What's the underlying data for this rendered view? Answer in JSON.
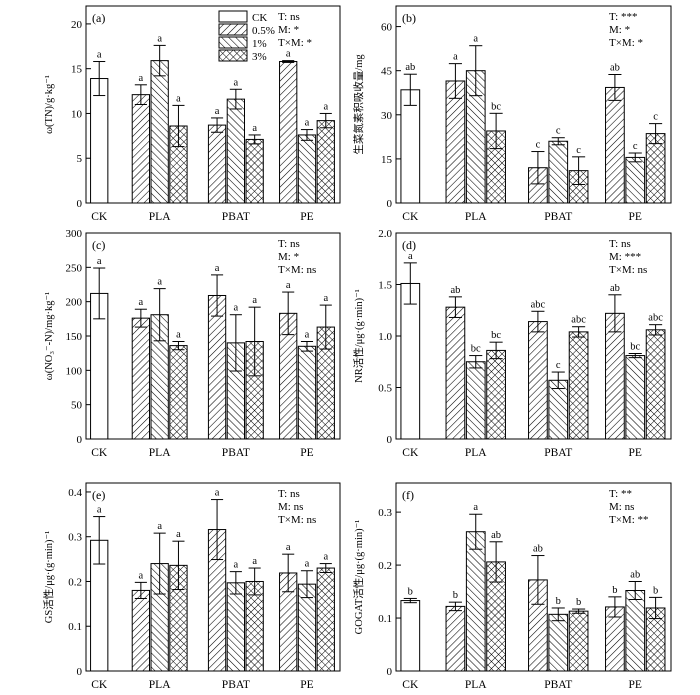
{
  "legend": [
    {
      "label": "CK",
      "pattern": "white"
    },
    {
      "label": "0.5%",
      "pattern": "diag-right"
    },
    {
      "label": "1%",
      "pattern": "diag-left"
    },
    {
      "label": "3%",
      "pattern": "cross"
    }
  ],
  "chart_data": [
    {
      "id": "a",
      "label": "(a)",
      "type": "bar",
      "ylabel": "ω(TN)/g·kg⁻¹",
      "ylim": [
        0,
        22
      ],
      "yticks": [
        0,
        5,
        10,
        15,
        20
      ],
      "ytick_labels": [
        "0",
        "5",
        "10",
        "15",
        "20"
      ],
      "categories": [
        "CK",
        "PLA",
        "PBAT",
        "PE"
      ],
      "stats": [
        "T: ns",
        "M: *",
        "T×M: *"
      ],
      "bars": [
        {
          "group": "CK",
          "level": "CK",
          "value": 13.9,
          "err": 1.9,
          "sig": "a"
        },
        {
          "group": "PLA",
          "level": "0.5%",
          "value": 12.1,
          "err": 1.1,
          "sig": "a"
        },
        {
          "group": "PLA",
          "level": "1%",
          "value": 15.9,
          "err": 1.7,
          "sig": "a"
        },
        {
          "group": "PLA",
          "level": "3%",
          "value": 8.6,
          "err": 2.3,
          "sig": "a"
        },
        {
          "group": "PBAT",
          "level": "0.5%",
          "value": 8.7,
          "err": 0.8,
          "sig": "a"
        },
        {
          "group": "PBAT",
          "level": "1%",
          "value": 11.6,
          "err": 1.1,
          "sig": "a"
        },
        {
          "group": "PBAT",
          "level": "3%",
          "value": 7.1,
          "err": 0.5,
          "sig": "a"
        },
        {
          "group": "PE",
          "level": "0.5%",
          "value": 15.8,
          "err": 0.1,
          "sig": "a"
        },
        {
          "group": "PE",
          "level": "1%",
          "value": 7.6,
          "err": 0.6,
          "sig": "a"
        },
        {
          "group": "PE",
          "level": "3%",
          "value": 9.2,
          "err": 0.8,
          "sig": "a"
        }
      ]
    },
    {
      "id": "b",
      "label": "(b)",
      "type": "bar",
      "ylabel": "生菜氮素积吸收量/mg",
      "ylim": [
        0,
        67
      ],
      "yticks": [
        0,
        15,
        30,
        45,
        60
      ],
      "ytick_labels": [
        "0",
        "15",
        "30",
        "45",
        "60"
      ],
      "categories": [
        "CK",
        "PLA",
        "PBAT",
        "PE"
      ],
      "stats": [
        "T: ***",
        "M: *",
        "T×M: *"
      ],
      "bars": [
        {
          "group": "CK",
          "level": "CK",
          "value": 38.5,
          "err": 5.3,
          "sig": "ab"
        },
        {
          "group": "PLA",
          "level": "0.5%",
          "value": 41.5,
          "err": 5.9,
          "sig": "a"
        },
        {
          "group": "PLA",
          "level": "1%",
          "value": 45,
          "err": 8.5,
          "sig": "a"
        },
        {
          "group": "PLA",
          "level": "3%",
          "value": 24.5,
          "err": 6,
          "sig": "bc"
        },
        {
          "group": "PBAT",
          "level": "0.5%",
          "value": 12,
          "err": 5.5,
          "sig": "c"
        },
        {
          "group": "PBAT",
          "level": "1%",
          "value": 21,
          "err": 1.2,
          "sig": "c"
        },
        {
          "group": "PBAT",
          "level": "3%",
          "value": 11,
          "err": 4.7,
          "sig": "c"
        },
        {
          "group": "PE",
          "level": "0.5%",
          "value": 39.3,
          "err": 4.4,
          "sig": "ab"
        },
        {
          "group": "PE",
          "level": "1%",
          "value": 15.5,
          "err": 1.5,
          "sig": "c"
        },
        {
          "group": "PE",
          "level": "3%",
          "value": 23.6,
          "err": 3.4,
          "sig": "c"
        }
      ]
    },
    {
      "id": "c",
      "label": "(c)",
      "type": "bar",
      "ylabel": "ω(NO₃⁻-N)/mg·kg⁻¹",
      "ylim": [
        0,
        300
      ],
      "yticks": [
        0,
        50,
        100,
        150,
        200,
        250,
        300
      ],
      "ytick_labels": [
        "0",
        "50",
        "100",
        "150",
        "200",
        "250",
        "300"
      ],
      "categories": [
        "CK",
        "PLA",
        "PBAT",
        "PE"
      ],
      "stats": [
        "T: ns",
        "M: *",
        "T×M: ns"
      ],
      "bars": [
        {
          "group": "CK",
          "level": "CK",
          "value": 212,
          "err": 37,
          "sig": "a"
        },
        {
          "group": "PLA",
          "level": "0.5%",
          "value": 176,
          "err": 13,
          "sig": "a"
        },
        {
          "group": "PLA",
          "level": "1%",
          "value": 181,
          "err": 38,
          "sig": "a"
        },
        {
          "group": "PLA",
          "level": "3%",
          "value": 136,
          "err": 6,
          "sig": "a"
        },
        {
          "group": "PBAT",
          "level": "0.5%",
          "value": 209,
          "err": 30,
          "sig": "a"
        },
        {
          "group": "PBAT",
          "level": "1%",
          "value": 140,
          "err": 41,
          "sig": "a"
        },
        {
          "group": "PBAT",
          "level": "3%",
          "value": 142,
          "err": 50,
          "sig": "a"
        },
        {
          "group": "PE",
          "level": "0.5%",
          "value": 183,
          "err": 31,
          "sig": "a"
        },
        {
          "group": "PE",
          "level": "1%",
          "value": 135,
          "err": 7,
          "sig": "a"
        },
        {
          "group": "PE",
          "level": "3%",
          "value": 163,
          "err": 32,
          "sig": "a"
        }
      ]
    },
    {
      "id": "d",
      "label": "(d)",
      "type": "bar",
      "ylabel": "NR活性/μg·(g·min)⁻¹",
      "ylim": [
        0,
        2.0
      ],
      "yticks": [
        0,
        0.5,
        1.0,
        1.5,
        2.0
      ],
      "ytick_labels": [
        "0",
        "0.5",
        "1.0",
        "1.5",
        "2.0"
      ],
      "categories": [
        "CK",
        "PLA",
        "PBAT",
        "PE"
      ],
      "stats": [
        "T: ns",
        "M: ***",
        "T×M: ns"
      ],
      "bars": [
        {
          "group": "CK",
          "level": "CK",
          "value": 1.51,
          "err": 0.2,
          "sig": "a"
        },
        {
          "group": "PLA",
          "level": "0.5%",
          "value": 1.28,
          "err": 0.1,
          "sig": "ab"
        },
        {
          "group": "PLA",
          "level": "1%",
          "value": 0.75,
          "err": 0.06,
          "sig": "bc"
        },
        {
          "group": "PLA",
          "level": "3%",
          "value": 0.86,
          "err": 0.08,
          "sig": "bc"
        },
        {
          "group": "PBAT",
          "level": "0.5%",
          "value": 1.14,
          "err": 0.1,
          "sig": "abc"
        },
        {
          "group": "PBAT",
          "level": "1%",
          "value": 0.57,
          "err": 0.08,
          "sig": "c"
        },
        {
          "group": "PBAT",
          "level": "3%",
          "value": 1.04,
          "err": 0.05,
          "sig": "abc"
        },
        {
          "group": "PE",
          "level": "0.5%",
          "value": 1.22,
          "err": 0.18,
          "sig": "ab"
        },
        {
          "group": "PE",
          "level": "1%",
          "value": 0.81,
          "err": 0.02,
          "sig": "bc"
        },
        {
          "group": "PE",
          "level": "3%",
          "value": 1.06,
          "err": 0.05,
          "sig": "abc"
        }
      ]
    },
    {
      "id": "e",
      "label": "(e)",
      "type": "bar",
      "ylabel": "GS活性/μg·(g·min)⁻¹",
      "ylim": [
        0,
        0.42
      ],
      "yticks": [
        0,
        0.1,
        0.2,
        0.3,
        0.4
      ],
      "ytick_labels": [
        "0",
        "0.1",
        "0.2",
        "0.3",
        "0.4"
      ],
      "categories": [
        "CK",
        "PLA",
        "PBAT",
        "PE"
      ],
      "stats": [
        "T: ns",
        "M: ns",
        "T×M: ns"
      ],
      "bars": [
        {
          "group": "CK",
          "level": "CK",
          "value": 0.292,
          "err": 0.053,
          "sig": "a"
        },
        {
          "group": "PLA",
          "level": "0.5%",
          "value": 0.18,
          "err": 0.018,
          "sig": "a"
        },
        {
          "group": "PLA",
          "level": "1%",
          "value": 0.24,
          "err": 0.068,
          "sig": "a"
        },
        {
          "group": "PLA",
          "level": "3%",
          "value": 0.236,
          "err": 0.054,
          "sig": "a"
        },
        {
          "group": "PBAT",
          "level": "0.5%",
          "value": 0.316,
          "err": 0.067,
          "sig": "a"
        },
        {
          "group": "PBAT",
          "level": "1%",
          "value": 0.197,
          "err": 0.025,
          "sig": "a"
        },
        {
          "group": "PBAT",
          "level": "3%",
          "value": 0.2,
          "err": 0.03,
          "sig": "a"
        },
        {
          "group": "PE",
          "level": "0.5%",
          "value": 0.219,
          "err": 0.042,
          "sig": "a"
        },
        {
          "group": "PE",
          "level": "1%",
          "value": 0.194,
          "err": 0.03,
          "sig": "a"
        },
        {
          "group": "PE",
          "level": "3%",
          "value": 0.23,
          "err": 0.01,
          "sig": "a"
        }
      ]
    },
    {
      "id": "f",
      "label": "(f)",
      "type": "bar",
      "ylabel": "GOGAT活性/μg·(g·min)⁻¹",
      "ylim": [
        0,
        0.355
      ],
      "yticks": [
        0,
        0.1,
        0.2,
        0.3
      ],
      "ytick_labels": [
        "0",
        "0.1",
        "0.2",
        "0.3"
      ],
      "categories": [
        "CK",
        "PLA",
        "PBAT",
        "PE"
      ],
      "stats": [
        "T: **",
        "M: ns",
        "T×M: **"
      ],
      "bars": [
        {
          "group": "CK",
          "level": "CK",
          "value": 0.133,
          "err": 0.004,
          "sig": "b"
        },
        {
          "group": "PLA",
          "level": "0.5%",
          "value": 0.122,
          "err": 0.008,
          "sig": "b"
        },
        {
          "group": "PLA",
          "level": "1%",
          "value": 0.263,
          "err": 0.033,
          "sig": "a"
        },
        {
          "group": "PLA",
          "level": "3%",
          "value": 0.206,
          "err": 0.038,
          "sig": "ab"
        },
        {
          "group": "PBAT",
          "level": "0.5%",
          "value": 0.172,
          "err": 0.046,
          "sig": "ab"
        },
        {
          "group": "PBAT",
          "level": "1%",
          "value": 0.107,
          "err": 0.012,
          "sig": "b"
        },
        {
          "group": "PBAT",
          "level": "3%",
          "value": 0.113,
          "err": 0.004,
          "sig": "b"
        },
        {
          "group": "PE",
          "level": "0.5%",
          "value": 0.121,
          "err": 0.019,
          "sig": "b"
        },
        {
          "group": "PE",
          "level": "1%",
          "value": 0.152,
          "err": 0.017,
          "sig": "ab"
        },
        {
          "group": "PE",
          "level": "3%",
          "value": 0.119,
          "err": 0.02,
          "sig": "b"
        }
      ]
    }
  ]
}
